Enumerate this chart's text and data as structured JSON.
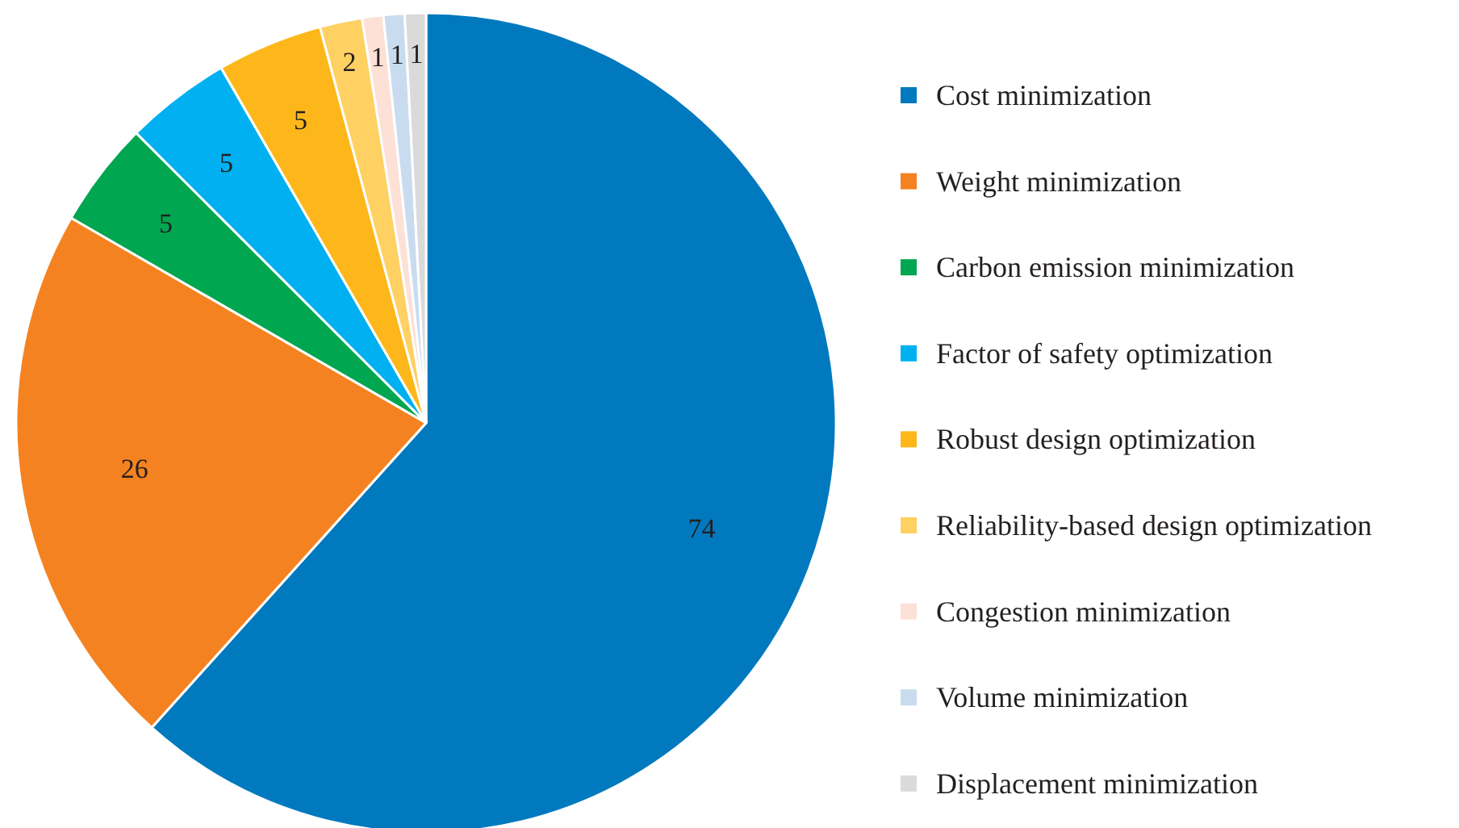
{
  "chart_data": {
    "type": "pie",
    "categories": [
      "Cost minimization",
      "Weight minimization",
      "Carbon emission minimization",
      "Factor of safety optimization",
      "Robust design optimization",
      "Reliability-based design optimization",
      "Congestion minimization",
      "Volume minimization",
      "Displacement minimization"
    ],
    "values": [
      74,
      26,
      5,
      5,
      5,
      2,
      1,
      1,
      1
    ],
    "colors": [
      "#0079be",
      "#f58220",
      "#00a650",
      "#00b0f0",
      "#fdb71a",
      "#ffd062",
      "#fde0d6",
      "#c9dcef",
      "#dadada"
    ],
    "data_labels": true,
    "legend": "right"
  }
}
